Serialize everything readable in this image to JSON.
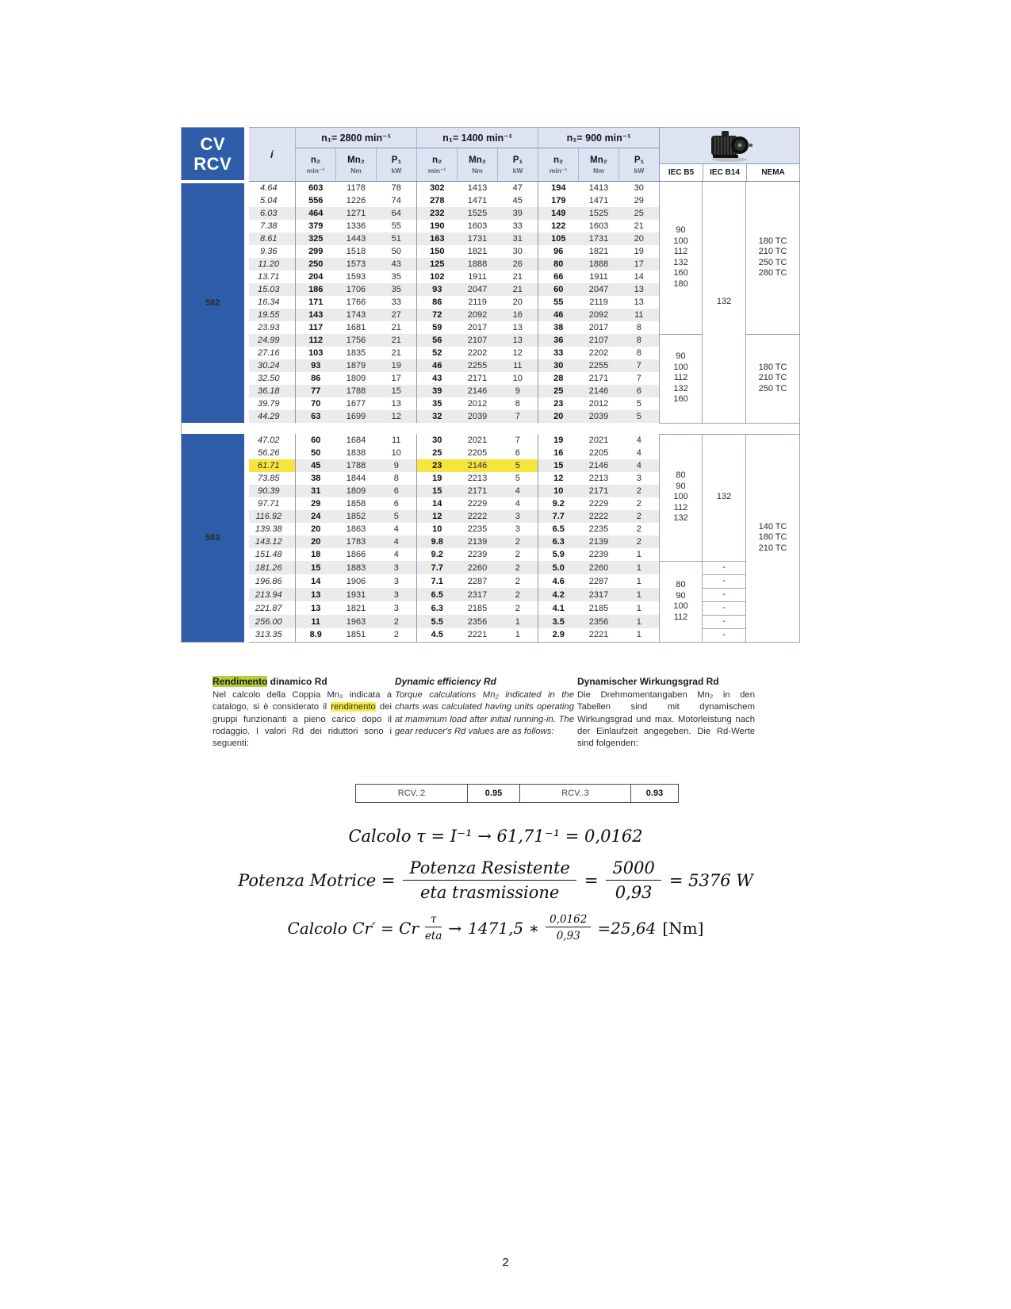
{
  "page": {
    "number": "2"
  },
  "gear_table": {
    "corner": [
      "CV",
      "RCV"
    ],
    "i_header": "i",
    "groups": [
      "n₁= 2800 min⁻¹",
      "n₁= 1400 min⁻¹",
      "n₁= 900 min⁻¹"
    ],
    "subcols": [
      {
        "n": "n₂",
        "u": "min⁻¹"
      },
      {
        "n": "Mn₂",
        "u": "Nm"
      },
      {
        "n": "P₁",
        "u": "kW"
      }
    ],
    "motor_headers": [
      "IEC B5",
      "IEC B14",
      "NEMA"
    ],
    "sections": [
      {
        "label": "582",
        "rows": [
          {
            "i": "4.64",
            "v": [
              "603",
              "1178",
              "78",
              "302",
              "1413",
              "47",
              "194",
              "1413",
              "30"
            ]
          },
          {
            "i": "5.04",
            "v": [
              "556",
              "1226",
              "74",
              "278",
              "1471",
              "45",
              "179",
              "1471",
              "29"
            ]
          },
          {
            "i": "6.03",
            "v": [
              "464",
              "1271",
              "64",
              "232",
              "1525",
              "39",
              "149",
              "1525",
              "25"
            ]
          },
          {
            "i": "7.38",
            "v": [
              "379",
              "1336",
              "55",
              "190",
              "1603",
              "33",
              "122",
              "1603",
              "21"
            ]
          },
          {
            "i": "8.61",
            "v": [
              "325",
              "1443",
              "51",
              "163",
              "1731",
              "31",
              "105",
              "1731",
              "20"
            ]
          },
          {
            "i": "9.36",
            "v": [
              "299",
              "1518",
              "50",
              "150",
              "1821",
              "30",
              "96",
              "1821",
              "19"
            ]
          },
          {
            "i": "11.20",
            "v": [
              "250",
              "1573",
              "43",
              "125",
              "1888",
              "26",
              "80",
              "1888",
              "17"
            ]
          },
          {
            "i": "13.71",
            "v": [
              "204",
              "1593",
              "35",
              "102",
              "1911",
              "21",
              "66",
              "1911",
              "14"
            ]
          },
          {
            "i": "15.03",
            "v": [
              "186",
              "1706",
              "35",
              "93",
              "2047",
              "21",
              "60",
              "2047",
              "13"
            ]
          },
          {
            "i": "16.34",
            "v": [
              "171",
              "1766",
              "33",
              "86",
              "2119",
              "20",
              "55",
              "2119",
              "13"
            ]
          },
          {
            "i": "19.55",
            "v": [
              "143",
              "1743",
              "27",
              "72",
              "2092",
              "16",
              "46",
              "2092",
              "11"
            ]
          },
          {
            "i": "23.93",
            "v": [
              "117",
              "1681",
              "21",
              "59",
              "2017",
              "13",
              "38",
              "2017",
              "8"
            ]
          },
          {
            "i": "24.99",
            "v": [
              "112",
              "1756",
              "21",
              "56",
              "2107",
              "13",
              "36",
              "2107",
              "8"
            ]
          },
          {
            "i": "27.16",
            "v": [
              "103",
              "1835",
              "21",
              "52",
              "2202",
              "12",
              "33",
              "2202",
              "8"
            ]
          },
          {
            "i": "30.24",
            "v": [
              "93",
              "1879",
              "19",
              "46",
              "2255",
              "11",
              "30",
              "2255",
              "7"
            ]
          },
          {
            "i": "32.50",
            "v": [
              "86",
              "1809",
              "17",
              "43",
              "2171",
              "10",
              "28",
              "2171",
              "7"
            ]
          },
          {
            "i": "36.18",
            "v": [
              "77",
              "1788",
              "15",
              "39",
              "2146",
              "9",
              "25",
              "2146",
              "6"
            ]
          },
          {
            "i": "39.79",
            "v": [
              "70",
              "1677",
              "13",
              "35",
              "2012",
              "8",
              "23",
              "2012",
              "5"
            ]
          },
          {
            "i": "44.29",
            "v": [
              "63",
              "1699",
              "12",
              "32",
              "2039",
              "7",
              "20",
              "2039",
              "5"
            ]
          }
        ]
      },
      {
        "label": "583",
        "rows": [
          {
            "i": "47.02",
            "v": [
              "60",
              "1684",
              "11",
              "30",
              "2021",
              "7",
              "19",
              "2021",
              "4"
            ]
          },
          {
            "i": "56.26",
            "v": [
              "50",
              "1838",
              "10",
              "25",
              "2205",
              "6",
              "16",
              "2205",
              "4"
            ]
          },
          {
            "i": "61.71",
            "v": [
              "45",
              "1788",
              "9",
              "23",
              "2146",
              "5",
              "15",
              "2146",
              "4"
            ]
          },
          {
            "i": "73.85",
            "v": [
              "38",
              "1844",
              "8",
              "19",
              "2213",
              "5",
              "12",
              "2213",
              "3"
            ]
          },
          {
            "i": "90.39",
            "v": [
              "31",
              "1809",
              "6",
              "15",
              "2171",
              "4",
              "10",
              "2171",
              "2"
            ]
          },
          {
            "i": "97.71",
            "v": [
              "29",
              "1858",
              "6",
              "14",
              "2229",
              "4",
              "9.2",
              "2229",
              "2"
            ]
          },
          {
            "i": "116.92",
            "v": [
              "24",
              "1852",
              "5",
              "12",
              "2222",
              "3",
              "7.7",
              "2222",
              "2"
            ]
          },
          {
            "i": "139.38",
            "v": [
              "20",
              "1863",
              "4",
              "10",
              "2235",
              "3",
              "6.5",
              "2235",
              "2"
            ]
          },
          {
            "i": "143.12",
            "v": [
              "20",
              "1783",
              "4",
              "9.8",
              "2139",
              "2",
              "6.3",
              "2139",
              "2"
            ]
          },
          {
            "i": "151.48",
            "v": [
              "18",
              "1866",
              "4",
              "9.2",
              "2239",
              "2",
              "5.9",
              "2239",
              "1"
            ]
          },
          {
            "i": "181.26",
            "v": [
              "15",
              "1883",
              "3",
              "7.7",
              "2260",
              "2",
              "5.0",
              "2260",
              "1"
            ]
          },
          {
            "i": "196.86",
            "v": [
              "14",
              "1906",
              "3",
              "7.1",
              "2287",
              "2",
              "4.6",
              "2287",
              "1"
            ]
          },
          {
            "i": "213.94",
            "v": [
              "13",
              "1931",
              "3",
              "6.5",
              "2317",
              "2",
              "4.2",
              "2317",
              "1"
            ]
          },
          {
            "i": "221.87",
            "v": [
              "13",
              "1821",
              "3",
              "6.3",
              "2185",
              "2",
              "4.1",
              "2185",
              "1"
            ]
          },
          {
            "i": "256.00",
            "v": [
              "11",
              "1963",
              "2",
              "5.5",
              "2356",
              "1",
              "3.5",
              "2356",
              "1"
            ]
          },
          {
            "i": "313.35",
            "v": [
              "8.9",
              "1851",
              "2",
              "4.5",
              "2221",
              "1",
              "2.9",
              "2221",
              "1"
            ]
          }
        ]
      }
    ],
    "highlight": {
      "section": 1,
      "row": 2,
      "cells": [
        3,
        4,
        5
      ]
    },
    "motor_cols": {
      "b5": [
        {
          "s": 0,
          "r": 0,
          "n": 12,
          "vals": [
            "90",
            "100",
            "112",
            "132",
            "160",
            "180"
          ]
        },
        {
          "s": 0,
          "r": 12,
          "n": 7,
          "vals": [
            "90",
            "100",
            "112",
            "132",
            "160"
          ]
        },
        {
          "s": 1,
          "r": 0,
          "n": 10,
          "vals": [
            "80",
            "90",
            "100",
            "112",
            "132"
          ]
        },
        {
          "s": 1,
          "r": 10,
          "n": 6,
          "vals": [
            "80",
            "90",
            "100",
            "112"
          ]
        }
      ],
      "b14": [
        {
          "s": 0,
          "r": 0,
          "n": 19,
          "vals": [
            "132"
          ]
        },
        {
          "s": 1,
          "r": 0,
          "n": 10,
          "vals": [
            "132"
          ]
        },
        {
          "s": 1,
          "r": 10,
          "n": 1,
          "vals": [
            "-"
          ]
        },
        {
          "s": 1,
          "r": 11,
          "n": 1,
          "vals": [
            "-"
          ]
        },
        {
          "s": 1,
          "r": 12,
          "n": 1,
          "vals": [
            "-"
          ]
        },
        {
          "s": 1,
          "r": 13,
          "n": 1,
          "vals": [
            "-"
          ]
        },
        {
          "s": 1,
          "r": 14,
          "n": 1,
          "vals": [
            "-"
          ]
        },
        {
          "s": 1,
          "r": 15,
          "n": 1,
          "vals": [
            "-"
          ]
        }
      ],
      "nema": [
        {
          "s": 0,
          "r": 0,
          "n": 12,
          "vals": [
            "180 TC",
            "210 TC",
            "250 TC",
            "280 TC"
          ]
        },
        {
          "s": 0,
          "r": 12,
          "n": 7,
          "vals": [
            "180 TC",
            "210 TC",
            "250 TC"
          ]
        },
        {
          "s": 1,
          "r": 0,
          "n": 16,
          "vals": [
            "140 TC",
            "180 TC",
            "210 TC"
          ]
        }
      ]
    }
  },
  "notes": {
    "it": {
      "title_hl": "Rendimento",
      "title_rest": " dinamico Rd",
      "body_1": "Nel calcolo della Coppia Mn₂ indicata a catalogo, si è considerato il ",
      "body_hl": "rendimento",
      "body_2": " dei gruppi funzionanti a pieno carico dopo il rodaggio. I valori Rd dei riduttori sono i seguenti:"
    },
    "en": {
      "title": "Dynamic efficiency Rd",
      "body": "Torque calculations Mn₂ indicated in the charts was calculated having units operating at mamimum load after initial running-in. The gear reducer's Rd values are as follows:"
    },
    "de": {
      "title": "Dynamischer Wirkungsgrad Rd",
      "body": "Die Drehmomentangaben Mn₂ in den Tabellen sind mit dynamischem Wirkungsgrad und max. Motorleistung nach der Einlaufzeit angegeben. Die Rd-Werte sind folgenden:"
    }
  },
  "rd_table": {
    "cells": [
      {
        "label": "RCV..2",
        "bold": false
      },
      {
        "label": "0.95",
        "bold": true
      },
      {
        "label": "RCV..3",
        "bold": false
      },
      {
        "label": "0.93",
        "bold": true
      }
    ]
  },
  "formulas": {
    "f1": "Calcolo τ = I⁻¹ → 61,71⁻¹ = 0,0162",
    "f2": {
      "lhs": "Potenza Motrice =",
      "num1": "Potenza Resistente",
      "den1": "eta trasmissione",
      "eq": "=",
      "num2": "5000",
      "den2": "0,93",
      "rhs": "= 5376 W"
    },
    "f3": {
      "lhs": "Calcolo Cr′ = Cr",
      "num1": "τ",
      "den1": "eta",
      "arrow": "→",
      "mid": "1471,5 ∗",
      "num2": "0,0162",
      "den2": "0,93",
      "rhs": "=25,64",
      "unit": "[Nm]"
    }
  },
  "colors": {
    "brand_blue": "#2e5ca8",
    "header_band": "#dde3f0",
    "row_stripe": "#ebebeb",
    "highlight_yellow": "#f7e53d",
    "highlight_green": "#b9cd3c"
  }
}
